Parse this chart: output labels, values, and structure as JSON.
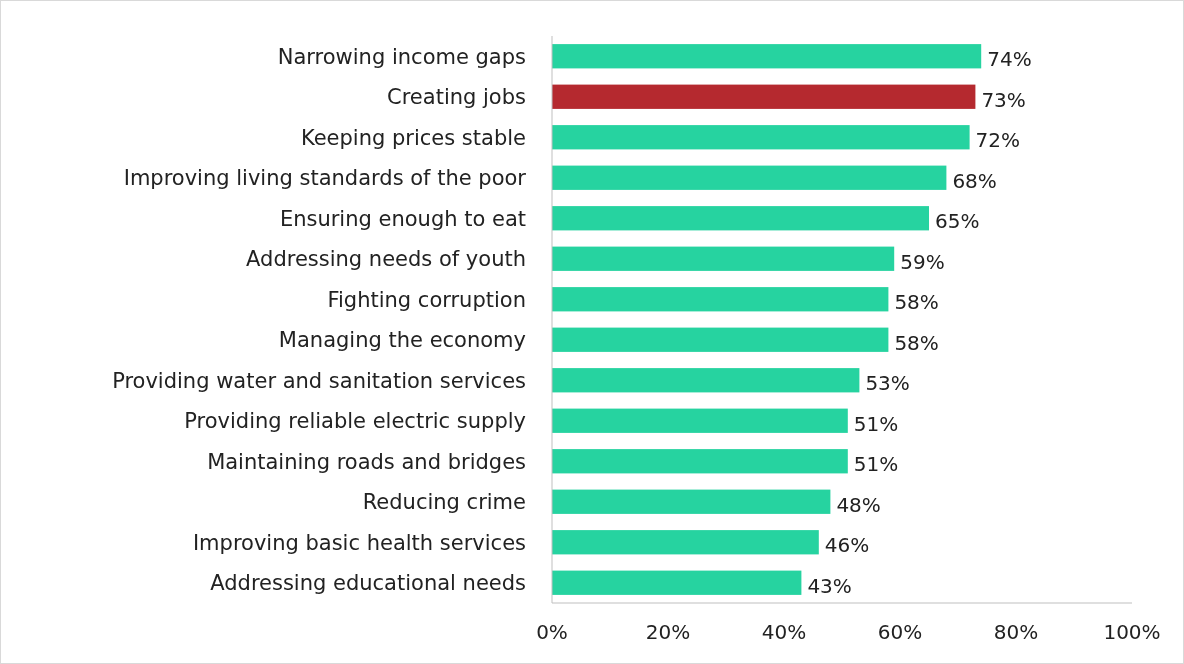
{
  "chart_data": {
    "type": "bar",
    "orientation": "horizontal",
    "categories": [
      "Narrowing income gaps",
      "Creating jobs",
      "Keeping prices stable",
      "Improving living standards of the poor",
      "Ensuring enough to eat",
      "Addressing needs of youth",
      "Fighting corruption",
      "Managing the economy",
      "Providing water and sanitation services",
      "Providing reliable electric supply",
      "Maintaining roads and bridges",
      "Reducing crime",
      "Improving basic health services",
      "Addressing educational needs"
    ],
    "values": [
      74,
      73,
      72,
      68,
      65,
      59,
      58,
      58,
      53,
      51,
      51,
      48,
      46,
      43
    ],
    "colors": [
      "#26d3a0",
      "#b5292f",
      "#26d3a0",
      "#26d3a0",
      "#26d3a0",
      "#26d3a0",
      "#26d3a0",
      "#26d3a0",
      "#26d3a0",
      "#26d3a0",
      "#26d3a0",
      "#26d3a0",
      "#26d3a0",
      "#26d3a0"
    ],
    "value_labels": [
      "74%",
      "73%",
      "72%",
      "68%",
      "65%",
      "59%",
      "58%",
      "58%",
      "53%",
      "51%",
      "51%",
      "48%",
      "46%",
      "43%"
    ],
    "xlim": [
      0,
      100
    ],
    "xticks": [
      {
        "value": 0,
        "label": "0%"
      },
      {
        "value": 20,
        "label": "20%"
      },
      {
        "value": 40,
        "label": "40%"
      },
      {
        "value": 60,
        "label": "60%"
      },
      {
        "value": 80,
        "label": "80%"
      },
      {
        "value": 100,
        "label": "100%"
      }
    ],
    "grid": false
  }
}
